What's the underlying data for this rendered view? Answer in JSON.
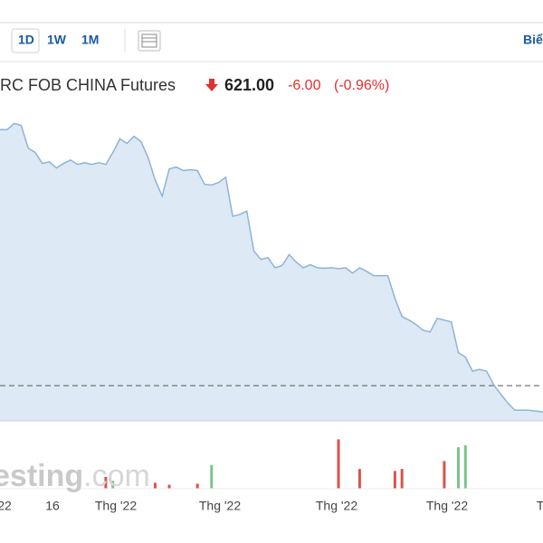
{
  "toolbar": {
    "buttons": [
      "1D",
      "1W",
      "1M"
    ],
    "right_label": "Biể"
  },
  "quote": {
    "name": "RC FOB CHINA Futures",
    "price": "621.00",
    "change": "-6.00",
    "change_pct": "(-0.96%)"
  },
  "watermark": {
    "main": "esting",
    "suffix": ".com"
  },
  "chart_data": {
    "type": "area",
    "color": "#8fb3d6",
    "fill": "#dde9f4",
    "ylim": [
      619,
      690
    ],
    "reference": 627,
    "x_labels": [
      "22",
      "16",
      "Thg '22",
      "Thg '22",
      "Thg '22",
      "Thg '22",
      "T"
    ],
    "values": [
      685.2,
      685.2,
      686.6,
      686.2,
      681.0,
      680.0,
      677.5,
      677.9,
      676.5,
      677.5,
      678.3,
      677.3,
      677.7,
      677.3,
      677.7,
      677.3,
      680.0,
      683.1,
      682.1,
      683.7,
      682.5,
      678.9,
      673.8,
      670.1,
      676.3,
      676.7,
      675.9,
      676.1,
      675.9,
      672.8,
      672.6,
      673.2,
      674.4,
      665.5,
      665.9,
      666.7,
      657.6,
      655.7,
      656.1,
      653.8,
      654.3,
      656.8,
      655.1,
      653.8,
      654.5,
      653.8,
      653.7,
      653.8,
      653.6,
      653.8,
      652.6,
      653.8,
      653.0,
      652.0,
      652.0,
      652.0,
      646.8,
      642.7,
      641.9,
      640.9,
      639.6,
      639.2,
      642.3,
      641.9,
      641.5,
      634.5,
      633.5,
      630.3,
      630.7,
      630.3,
      627.2,
      625.1,
      623.1,
      621.4,
      621.4,
      621.4,
      621.2,
      621.0
    ],
    "volume": [
      {
        "i": 15,
        "value": 12,
        "color": "#d9534f"
      },
      {
        "i": 16,
        "value": 8,
        "color": "#7cc48a"
      },
      {
        "i": 22,
        "value": 6,
        "color": "#d9534f"
      },
      {
        "i": 24,
        "value": 4,
        "color": "#d9534f"
      },
      {
        "i": 28,
        "value": 5,
        "color": "#d9534f"
      },
      {
        "i": 30,
        "value": 24,
        "color": "#7cc48a"
      },
      {
        "i": 48,
        "value": 50,
        "color": "#d9534f"
      },
      {
        "i": 51,
        "value": 20,
        "color": "#d9534f"
      },
      {
        "i": 56,
        "value": 18,
        "color": "#d9534f"
      },
      {
        "i": 57,
        "value": 20,
        "color": "#d9534f"
      },
      {
        "i": 63,
        "value": 28,
        "color": "#d9534f"
      },
      {
        "i": 65,
        "value": 42,
        "color": "#7cc48a"
      },
      {
        "i": 66,
        "value": 44,
        "color": "#7cc48a"
      }
    ],
    "volume_lim": [
      0,
      55
    ]
  }
}
